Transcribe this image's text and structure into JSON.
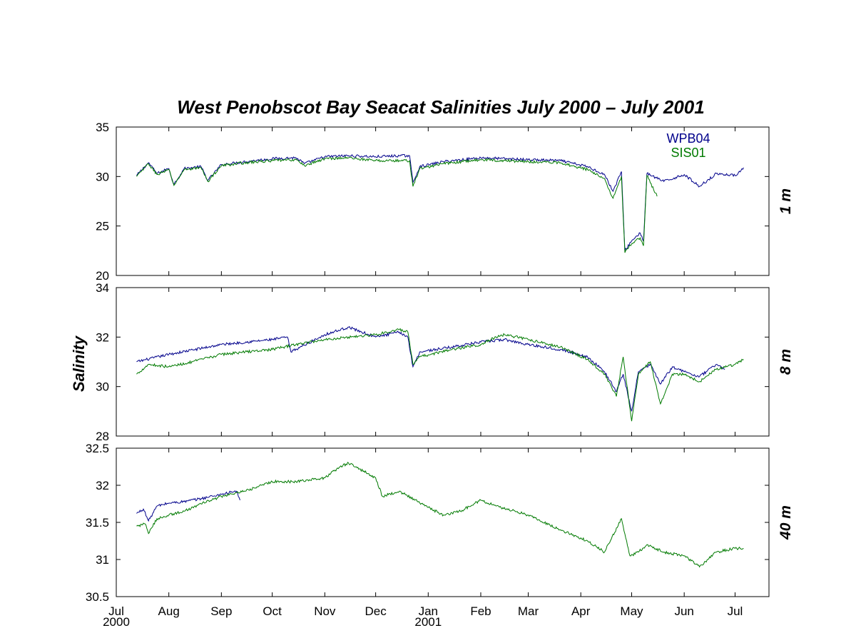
{
  "chart_data": {
    "type": "line",
    "title": "West Penobscot Bay  Seacat Salinities   July 2000 – July 2001",
    "ylabel": "Salinity",
    "xlim": [
      "2000-07-01",
      "2001-07-21"
    ],
    "x_ticks": [
      {
        "date": "2000-07-01",
        "label": "Jul",
        "year": "2000"
      },
      {
        "date": "2000-08-01",
        "label": "Aug"
      },
      {
        "date": "2000-09-01",
        "label": "Sep"
      },
      {
        "date": "2000-10-01",
        "label": "Oct"
      },
      {
        "date": "2000-11-01",
        "label": "Nov"
      },
      {
        "date": "2000-12-01",
        "label": "Dec"
      },
      {
        "date": "2001-01-01",
        "label": "Jan",
        "year": "2001"
      },
      {
        "date": "2001-02-01",
        "label": "Feb"
      },
      {
        "date": "2001-03-01",
        "label": "Mar"
      },
      {
        "date": "2001-04-01",
        "label": "Apr"
      },
      {
        "date": "2001-05-01",
        "label": "May"
      },
      {
        "date": "2001-06-01",
        "label": "Jun"
      },
      {
        "date": "2001-07-01",
        "label": "Jul"
      }
    ],
    "legend": {
      "placement": "top-right",
      "entries": [
        {
          "name": "WPB04",
          "color": "#00008b"
        },
        {
          "name": "SIS01",
          "color": "#007a00"
        }
      ]
    },
    "panels": [
      {
        "depth_label": "1 m",
        "ylim": [
          20,
          35
        ],
        "yticks": [
          20,
          25,
          30,
          35
        ],
        "series": [
          {
            "name": "WPB04",
            "color": "#00008b",
            "points": [
              [
                "2000-07-13",
                30.1
              ],
              [
                "2000-07-20",
                31.4
              ],
              [
                "2000-07-25",
                30.3
              ],
              [
                "2000-08-01",
                30.8
              ],
              [
                "2000-08-04",
                29.2
              ],
              [
                "2000-08-10",
                30.8
              ],
              [
                "2000-08-20",
                31.0
              ],
              [
                "2000-08-24",
                29.6
              ],
              [
                "2000-09-01",
                31.2
              ],
              [
                "2000-09-15",
                31.5
              ],
              [
                "2000-10-01",
                31.8
              ],
              [
                "2000-10-15",
                31.9
              ],
              [
                "2000-10-20",
                31.3
              ],
              [
                "2000-11-01",
                32.0
              ],
              [
                "2000-11-15",
                32.1
              ],
              [
                "2000-12-01",
                32.0
              ],
              [
                "2000-12-15",
                32.1
              ],
              [
                "2000-12-21",
                32.1
              ],
              [
                "2000-12-23",
                29.4
              ],
              [
                "2000-12-27",
                31.0
              ],
              [
                "2001-01-10",
                31.5
              ],
              [
                "2001-02-01",
                31.9
              ],
              [
                "2001-03-01",
                31.7
              ],
              [
                "2001-03-20",
                31.6
              ],
              [
                "2001-04-05",
                31.0
              ],
              [
                "2001-04-15",
                30.2
              ],
              [
                "2001-04-20",
                28.5
              ],
              [
                "2001-04-25",
                30.5
              ],
              [
                "2001-04-27",
                22.5
              ],
              [
                "2001-05-01",
                23.5
              ],
              [
                "2001-05-06",
                24.3
              ],
              [
                "2001-05-08",
                23.5
              ],
              [
                "2001-05-10",
                30.3
              ],
              [
                "2001-05-20",
                29.5
              ],
              [
                "2001-06-01",
                30.2
              ],
              [
                "2001-06-10",
                29.0
              ],
              [
                "2001-06-20",
                30.3
              ],
              [
                "2001-07-01",
                30.1
              ],
              [
                "2001-07-06",
                30.9
              ]
            ]
          },
          {
            "name": "SIS01",
            "color": "#007a00",
            "points": [
              [
                "2000-07-13",
                30.0
              ],
              [
                "2000-07-20",
                31.3
              ],
              [
                "2000-07-25",
                30.2
              ],
              [
                "2000-08-01",
                30.7
              ],
              [
                "2000-08-04",
                29.1
              ],
              [
                "2000-08-10",
                30.7
              ],
              [
                "2000-08-20",
                30.9
              ],
              [
                "2000-08-24",
                29.5
              ],
              [
                "2000-09-01",
                31.1
              ],
              [
                "2000-09-15",
                31.4
              ],
              [
                "2000-10-01",
                31.6
              ],
              [
                "2000-10-15",
                31.7
              ],
              [
                "2000-10-20",
                31.1
              ],
              [
                "2000-11-01",
                31.8
              ],
              [
                "2000-11-15",
                31.9
              ],
              [
                "2000-12-01",
                31.6
              ],
              [
                "2000-12-15",
                31.6
              ],
              [
                "2000-12-21",
                31.6
              ],
              [
                "2000-12-23",
                29.0
              ],
              [
                "2000-12-27",
                30.8
              ],
              [
                "2001-01-10",
                31.3
              ],
              [
                "2001-02-01",
                31.7
              ],
              [
                "2001-03-01",
                31.5
              ],
              [
                "2001-03-20",
                31.4
              ],
              [
                "2001-04-05",
                30.7
              ],
              [
                "2001-04-15",
                29.8
              ],
              [
                "2001-04-20",
                27.8
              ],
              [
                "2001-04-25",
                30.0
              ],
              [
                "2001-04-27",
                22.3
              ],
              [
                "2001-05-01",
                23.2
              ],
              [
                "2001-05-06",
                23.8
              ],
              [
                "2001-05-08",
                23.0
              ],
              [
                "2001-05-10",
                30.1
              ],
              [
                "2001-05-16",
                28.0
              ]
            ]
          }
        ]
      },
      {
        "depth_label": "8 m",
        "ylim": [
          28,
          34
        ],
        "yticks": [
          28,
          30,
          32,
          34
        ],
        "series": [
          {
            "name": "WPB04",
            "color": "#00008b",
            "points": [
              [
                "2000-07-13",
                31.0
              ],
              [
                "2000-08-01",
                31.3
              ],
              [
                "2000-09-01",
                31.7
              ],
              [
                "2000-10-01",
                31.9
              ],
              [
                "2000-10-10",
                32.0
              ],
              [
                "2000-10-12",
                31.4
              ],
              [
                "2000-11-01",
                32.1
              ],
              [
                "2000-11-15",
                32.4
              ],
              [
                "2000-12-01",
                32.0
              ],
              [
                "2000-12-15",
                32.2
              ],
              [
                "2000-12-20",
                32.0
              ],
              [
                "2000-12-23",
                30.8
              ],
              [
                "2000-12-27",
                31.4
              ],
              [
                "2001-01-15",
                31.6
              ],
              [
                "2001-02-01",
                31.8
              ],
              [
                "2001-02-15",
                31.9
              ],
              [
                "2001-03-01",
                31.7
              ],
              [
                "2001-03-20",
                31.5
              ],
              [
                "2001-04-05",
                31.2
              ],
              [
                "2001-04-15",
                30.6
              ],
              [
                "2001-04-22",
                29.8
              ],
              [
                "2001-04-26",
                30.5
              ],
              [
                "2001-05-01",
                29.0
              ],
              [
                "2001-05-05",
                30.6
              ],
              [
                "2001-05-12",
                30.9
              ],
              [
                "2001-05-18",
                30.1
              ],
              [
                "2001-05-25",
                30.8
              ],
              [
                "2001-06-01",
                30.6
              ],
              [
                "2001-06-10",
                30.4
              ],
              [
                "2001-06-20",
                30.9
              ],
              [
                "2001-06-25",
                30.7
              ]
            ]
          },
          {
            "name": "SIS01",
            "color": "#007a00",
            "points": [
              [
                "2000-07-13",
                30.5
              ],
              [
                "2000-07-20",
                30.9
              ],
              [
                "2000-08-01",
                30.8
              ],
              [
                "2000-08-15",
                31.0
              ],
              [
                "2000-09-01",
                31.3
              ],
              [
                "2000-09-15",
                31.4
              ],
              [
                "2000-10-01",
                31.5
              ],
              [
                "2000-10-15",
                31.7
              ],
              [
                "2000-11-01",
                31.9
              ],
              [
                "2000-11-15",
                32.0
              ],
              [
                "2000-12-01",
                32.1
              ],
              [
                "2000-12-15",
                32.3
              ],
              [
                "2000-12-20",
                32.2
              ],
              [
                "2000-12-23",
                30.9
              ],
              [
                "2000-12-27",
                31.2
              ],
              [
                "2001-01-15",
                31.5
              ],
              [
                "2001-02-01",
                31.7
              ],
              [
                "2001-02-10",
                32.0
              ],
              [
                "2001-02-15",
                32.1
              ],
              [
                "2001-03-01",
                31.9
              ],
              [
                "2001-03-20",
                31.6
              ],
              [
                "2001-04-05",
                31.1
              ],
              [
                "2001-04-15",
                30.5
              ],
              [
                "2001-04-22",
                29.6
              ],
              [
                "2001-04-26",
                31.2
              ],
              [
                "2001-05-01",
                28.6
              ],
              [
                "2001-05-05",
                30.5
              ],
              [
                "2001-05-12",
                31.0
              ],
              [
                "2001-05-18",
                29.3
              ],
              [
                "2001-05-25",
                30.5
              ],
              [
                "2001-06-01",
                30.5
              ],
              [
                "2001-06-10",
                30.2
              ],
              [
                "2001-06-20",
                30.7
              ],
              [
                "2001-07-01",
                30.9
              ],
              [
                "2001-07-06",
                31.1
              ]
            ]
          }
        ]
      },
      {
        "depth_label": "40 m",
        "ylim": [
          30.5,
          32.5
        ],
        "yticks": [
          30.5,
          31,
          31.5,
          32,
          32.5
        ],
        "series": [
          {
            "name": "WPB04",
            "color": "#00008b",
            "points": [
              [
                "2000-07-13",
                31.62
              ],
              [
                "2000-07-17",
                31.68
              ],
              [
                "2000-07-20",
                31.52
              ],
              [
                "2000-07-25",
                31.72
              ],
              [
                "2000-08-01",
                31.76
              ],
              [
                "2000-08-10",
                31.78
              ],
              [
                "2000-08-20",
                31.82
              ],
              [
                "2000-09-01",
                31.88
              ],
              [
                "2000-09-10",
                31.92
              ],
              [
                "2000-09-12",
                31.8
              ]
            ]
          },
          {
            "name": "SIS01",
            "color": "#007a00",
            "points": [
              [
                "2000-07-13",
                31.45
              ],
              [
                "2000-07-18",
                31.48
              ],
              [
                "2000-07-20",
                31.35
              ],
              [
                "2000-07-25",
                31.55
              ],
              [
                "2000-08-01",
                31.6
              ],
              [
                "2000-08-10",
                31.65
              ],
              [
                "2000-08-20",
                31.75
              ],
              [
                "2000-09-01",
                31.85
              ],
              [
                "2000-09-15",
                31.92
              ],
              [
                "2000-10-01",
                32.05
              ],
              [
                "2000-10-15",
                32.05
              ],
              [
                "2000-11-01",
                32.1
              ],
              [
                "2000-11-10",
                32.25
              ],
              [
                "2000-11-15",
                32.3
              ],
              [
                "2000-12-01",
                32.1
              ],
              [
                "2000-12-05",
                31.85
              ],
              [
                "2000-12-15",
                31.92
              ],
              [
                "2001-01-01",
                31.7
              ],
              [
                "2001-01-10",
                31.6
              ],
              [
                "2001-01-20",
                31.65
              ],
              [
                "2001-02-01",
                31.8
              ],
              [
                "2001-02-10",
                31.72
              ],
              [
                "2001-03-01",
                31.6
              ],
              [
                "2001-03-20",
                31.4
              ],
              [
                "2001-04-05",
                31.25
              ],
              [
                "2001-04-15",
                31.1
              ],
              [
                "2001-04-25",
                31.55
              ],
              [
                "2001-04-30",
                31.05
              ],
              [
                "2001-05-05",
                31.1
              ],
              [
                "2001-05-10",
                31.2
              ],
              [
                "2001-05-20",
                31.1
              ],
              [
                "2001-06-01",
                31.05
              ],
              [
                "2001-06-10",
                30.9
              ],
              [
                "2001-06-20",
                31.1
              ],
              [
                "2001-07-01",
                31.15
              ],
              [
                "2001-07-06",
                31.15
              ]
            ]
          }
        ]
      }
    ]
  }
}
